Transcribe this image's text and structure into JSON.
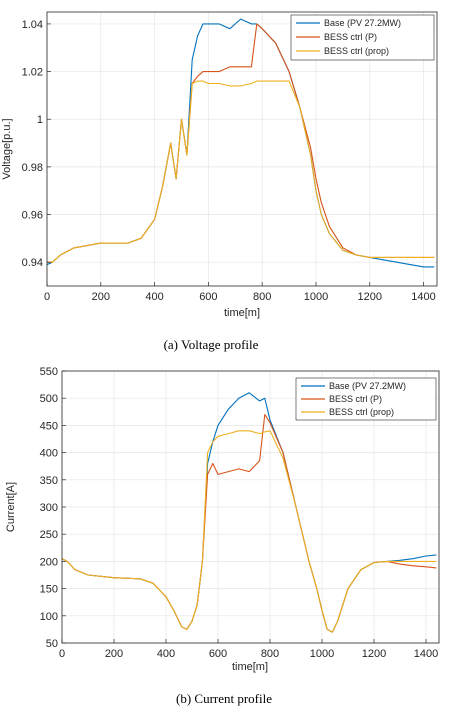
{
  "colors": {
    "base": "#0072BD",
    "bess_p": "#D95319",
    "bess_prop": "#EDB120",
    "grid": "#e6e6e6",
    "axis": "#262626"
  },
  "chart_data": [
    {
      "type": "line",
      "caption": "(a)  Voltage  profile",
      "xlabel": "time[m]",
      "ylabel": "Voltage[p.u.]",
      "xlim": [
        0,
        1450
      ],
      "ylim": [
        0.93,
        1.045
      ],
      "xticks": [
        0,
        200,
        400,
        600,
        800,
        1000,
        1200,
        1400
      ],
      "yticks": [
        0.94,
        0.96,
        0.98,
        1.0,
        1.02,
        1.04
      ],
      "ytick_labels": [
        "0.94",
        "0.96",
        "0.98",
        "1",
        "1.02",
        "1.04"
      ],
      "grid": true,
      "legend_position": "top-right",
      "series": [
        {
          "name": "Base (PV 27.2MW)",
          "color_key": "base",
          "x": [
            0,
            20,
            50,
            100,
            200,
            300,
            350,
            400,
            430,
            460,
            480,
            500,
            520,
            540,
            560,
            580,
            600,
            640,
            680,
            720,
            760,
            780,
            800,
            850,
            900,
            940,
            980,
            1000,
            1020,
            1050,
            1100,
            1150,
            1200,
            1250,
            1300,
            1350,
            1400,
            1440
          ],
          "y": [
            0.939,
            0.94,
            0.943,
            0.946,
            0.948,
            0.948,
            0.95,
            0.958,
            0.972,
            0.99,
            0.975,
            1.0,
            0.985,
            1.025,
            1.035,
            1.04,
            1.04,
            1.04,
            1.038,
            1.042,
            1.04,
            1.04,
            1.038,
            1.032,
            1.02,
            1.005,
            0.985,
            0.97,
            0.96,
            0.952,
            0.945,
            0.943,
            0.942,
            0.941,
            0.94,
            0.939,
            0.938,
            0.938
          ]
        },
        {
          "name": "BESS ctrl (P)",
          "color_key": "bess_p",
          "x": [
            0,
            20,
            50,
            100,
            200,
            300,
            350,
            400,
            430,
            460,
            480,
            500,
            520,
            540,
            560,
            580,
            600,
            640,
            680,
            720,
            760,
            780,
            800,
            850,
            900,
            940,
            980,
            1000,
            1020,
            1050,
            1100,
            1150,
            1200,
            1250,
            1300,
            1350,
            1400,
            1440
          ],
          "y": [
            0.94,
            0.94,
            0.943,
            0.946,
            0.948,
            0.948,
            0.95,
            0.958,
            0.972,
            0.99,
            0.975,
            1.0,
            0.985,
            1.015,
            1.018,
            1.02,
            1.02,
            1.02,
            1.022,
            1.022,
            1.022,
            1.04,
            1.038,
            1.032,
            1.02,
            1.005,
            0.988,
            0.975,
            0.965,
            0.955,
            0.946,
            0.943,
            0.942,
            0.942,
            0.942,
            0.942,
            0.942,
            0.942
          ]
        },
        {
          "name": "BESS ctrl (prop)",
          "color_key": "bess_prop",
          "x": [
            0,
            20,
            50,
            100,
            200,
            300,
            350,
            400,
            430,
            460,
            480,
            500,
            520,
            540,
            560,
            580,
            600,
            640,
            680,
            720,
            760,
            780,
            800,
            850,
            900,
            940,
            980,
            1000,
            1020,
            1050,
            1100,
            1150,
            1200,
            1250,
            1300,
            1350,
            1400,
            1440
          ],
          "y": [
            0.94,
            0.94,
            0.943,
            0.946,
            0.948,
            0.948,
            0.95,
            0.958,
            0.972,
            0.99,
            0.975,
            1.0,
            0.985,
            1.015,
            1.016,
            1.016,
            1.015,
            1.015,
            1.014,
            1.014,
            1.015,
            1.016,
            1.016,
            1.016,
            1.016,
            1.005,
            0.985,
            0.97,
            0.96,
            0.952,
            0.945,
            0.943,
            0.942,
            0.942,
            0.942,
            0.942,
            0.942,
            0.942
          ]
        }
      ]
    },
    {
      "type": "line",
      "caption": "(b)  Current  profile",
      "xlabel": "time[m]",
      "ylabel": "Current[A]",
      "xlim": [
        0,
        1450
      ],
      "ylim": [
        50,
        550
      ],
      "xticks": [
        0,
        200,
        400,
        600,
        800,
        1000,
        1200,
        1400
      ],
      "yticks": [
        50,
        100,
        150,
        200,
        250,
        300,
        350,
        400,
        450,
        500,
        550
      ],
      "ytick_labels": [
        "50",
        "100",
        "150",
        "200",
        "250",
        "300",
        "350",
        "400",
        "450",
        "500",
        "550"
      ],
      "grid": true,
      "legend_position": "top-right",
      "series": [
        {
          "name": "Base (PV 27.2MW)",
          "color_key": "base",
          "x": [
            0,
            20,
            50,
            100,
            200,
            300,
            350,
            400,
            430,
            460,
            480,
            500,
            520,
            540,
            560,
            580,
            600,
            640,
            680,
            720,
            760,
            780,
            800,
            850,
            900,
            950,
            980,
            1000,
            1020,
            1040,
            1060,
            1100,
            1150,
            1200,
            1250,
            1300,
            1350,
            1400,
            1440
          ],
          "y": [
            205,
            200,
            185,
            175,
            170,
            168,
            160,
            135,
            110,
            80,
            75,
            90,
            120,
            200,
            380,
            420,
            450,
            480,
            500,
            510,
            495,
            500,
            460,
            400,
            300,
            200,
            150,
            110,
            75,
            70,
            90,
            150,
            185,
            198,
            200,
            202,
            205,
            210,
            212
          ]
        },
        {
          "name": "BESS ctrl (P)",
          "color_key": "bess_p",
          "x": [
            0,
            20,
            50,
            100,
            200,
            300,
            350,
            400,
            430,
            460,
            480,
            500,
            520,
            540,
            560,
            580,
            600,
            640,
            680,
            720,
            760,
            780,
            800,
            850,
            900,
            950,
            980,
            1000,
            1020,
            1040,
            1060,
            1100,
            1150,
            1200,
            1250,
            1300,
            1350,
            1400,
            1440
          ],
          "y": [
            205,
            200,
            185,
            175,
            170,
            168,
            160,
            135,
            110,
            80,
            75,
            90,
            120,
            200,
            360,
            380,
            360,
            365,
            370,
            365,
            385,
            470,
            455,
            400,
            300,
            200,
            150,
            110,
            75,
            70,
            90,
            150,
            185,
            198,
            200,
            195,
            192,
            190,
            188
          ]
        },
        {
          "name": "BESS ctrl (prop)",
          "color_key": "bess_prop",
          "x": [
            0,
            20,
            50,
            100,
            200,
            300,
            350,
            400,
            430,
            460,
            480,
            500,
            520,
            540,
            560,
            580,
            600,
            640,
            680,
            720,
            760,
            780,
            800,
            850,
            900,
            950,
            980,
            1000,
            1020,
            1040,
            1060,
            1100,
            1150,
            1200,
            1250,
            1300,
            1350,
            1400,
            1440
          ],
          "y": [
            205,
            200,
            185,
            175,
            170,
            168,
            160,
            135,
            110,
            80,
            75,
            90,
            120,
            200,
            400,
            420,
            430,
            435,
            440,
            440,
            435,
            438,
            440,
            390,
            300,
            200,
            150,
            110,
            75,
            70,
            90,
            150,
            185,
            198,
            200,
            200,
            200,
            200,
            200
          ]
        }
      ]
    }
  ]
}
